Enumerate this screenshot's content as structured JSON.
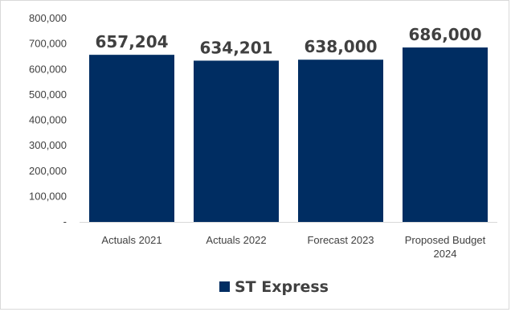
{
  "chart_data": {
    "type": "bar",
    "categories": [
      "Actuals 2021",
      "Actuals 2022",
      "Forecast 2023",
      "Proposed Budget 2024"
    ],
    "category_lines": [
      [
        "Actuals 2021"
      ],
      [
        "Actuals 2022"
      ],
      [
        "Forecast 2023"
      ],
      [
        "Proposed Budget",
        "2024"
      ]
    ],
    "series": [
      {
        "name": "ST Express",
        "values": [
          657204,
          634201,
          638000,
          686000
        ],
        "color": "#002d62"
      }
    ],
    "data_labels": [
      "657,204",
      "634,201",
      "638,000",
      "686,000"
    ],
    "ylim": [
      0,
      800000
    ],
    "y_ticks": [
      0,
      100000,
      200000,
      300000,
      400000,
      500000,
      600000,
      700000,
      800000
    ],
    "y_tick_labels": [
      "-",
      "100,000",
      "200,000",
      "300,000",
      "400,000",
      "500,000",
      "600,000",
      "700,000",
      "800,000"
    ],
    "grid": false,
    "legend_position": "bottom"
  }
}
